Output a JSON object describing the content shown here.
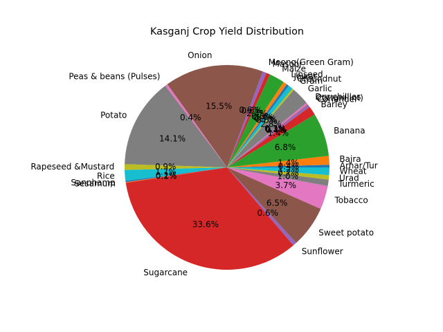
{
  "chart_data": {
    "type": "pie",
    "title": "Kasganj Crop Yield Distribution",
    "start_angle_deg": 0,
    "direction": "counterclockwise",
    "autopct_format": "%.1f%%",
    "labels": [
      "Arhar/Tur",
      "Bajra",
      "Banana",
      "Barley",
      "Coriander",
      "Cotton(lint)",
      "Dry chillies",
      "Garlic",
      "Gram",
      "Groundnut",
      "Jowar",
      "Linseed",
      "Maize",
      "Masoor",
      "Moong(Green Gram)",
      "Onion",
      "Peas & beans (Pulses)",
      "Potato",
      "Rapeseed &Mustard",
      "Rice",
      "Sannhamp",
      "Sesamum",
      "Sugarcane",
      "Sunflower",
      "Sweet potato",
      "Tobacco",
      "Turmeric",
      "Urad",
      "Wheat"
    ],
    "values": [
      0.4,
      1.4,
      6.8,
      1.4,
      0.4,
      0.1,
      0.3,
      2.8,
      0.3,
      0.7,
      0.4,
      0.6,
      2.4,
      0.6,
      0.6,
      15.5,
      0.4,
      14.1,
      0.9,
      1.7,
      0.2,
      0.1,
      33.6,
      0.6,
      6.5,
      3.7,
      1.0,
      0.7,
      1.2
    ],
    "pct_labels": [
      "0.4%",
      "1.4%",
      "6.8%",
      "1.4%",
      "0.4%",
      "0.1%",
      "0.3%",
      "2.8%",
      "0.3%",
      "0.7%",
      "0.4%",
      "0.6%",
      "2.4%",
      "0.6%",
      "0.6%",
      "15.5%",
      "0.4%",
      "14.1%",
      "0.9%",
      "1.7%",
      "0.2%",
      "0.1%",
      "33.6%",
      "0.6%",
      "6.5%",
      "3.7%",
      "1.0%",
      "0.7%",
      "1.2%"
    ],
    "colors": [
      "#1f77b4",
      "#ff7f0e",
      "#2ca02c",
      "#d62728",
      "#9467bd",
      "#8c564b",
      "#e377c2",
      "#7f7f7f",
      "#bcbd22",
      "#17becf",
      "#1f77b4",
      "#ff7f0e",
      "#2ca02c",
      "#d62728",
      "#9467bd",
      "#8c564b",
      "#e377c2",
      "#7f7f7f",
      "#bcbd22",
      "#17becf",
      "#1f77b4",
      "#ff7f0e",
      "#d62728",
      "#9467bd",
      "#8c564b",
      "#e377c2",
      "#7f7f7f",
      "#bcbd22",
      "#17becf"
    ],
    "legend": "none"
  }
}
